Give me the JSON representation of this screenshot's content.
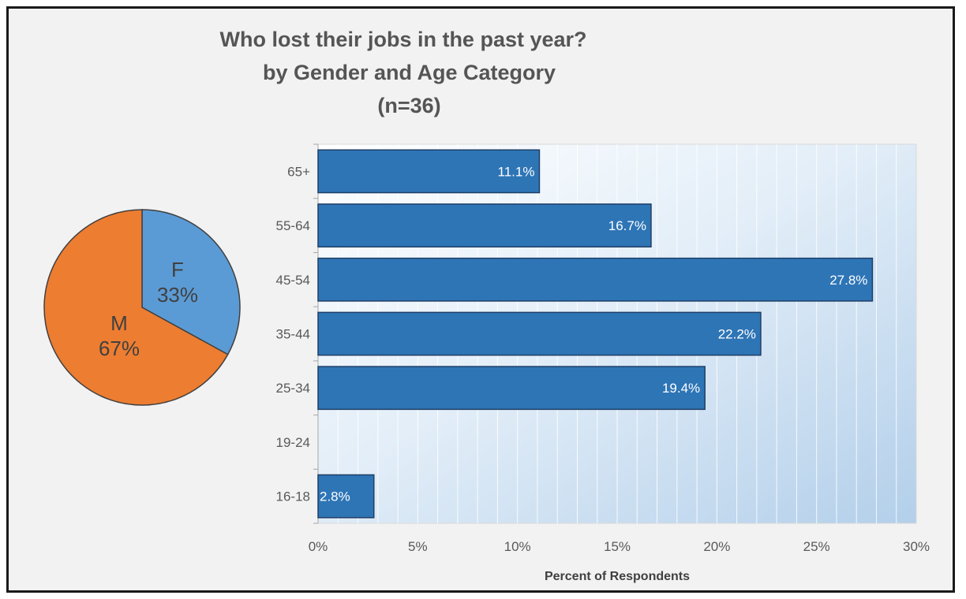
{
  "chart_data": [
    {
      "type": "pie",
      "title": "",
      "slices": [
        {
          "label": "F",
          "value": 33,
          "display": "33%",
          "color": "#5b9bd5"
        },
        {
          "label": "M",
          "value": 67,
          "display": "67%",
          "color": "#ed7d31"
        }
      ]
    },
    {
      "type": "bar",
      "orientation": "horizontal",
      "title_lines": [
        "Who lost their jobs in the past year?",
        "by Gender and Age Category",
        "(n=36)"
      ],
      "categories": [
        "65+",
        "55-64",
        "45-54",
        "35-44",
        "25-34",
        "19-24",
        "16-18"
      ],
      "values": [
        11.1,
        16.7,
        27.8,
        22.2,
        19.4,
        null,
        2.8
      ],
      "data_labels": [
        "11.1%",
        "16.7%",
        "27.8%",
        "22.2%",
        "19.4%",
        "",
        "2.8%"
      ],
      "xlabel": "Percent of Respondents",
      "ylabel": "",
      "xlim": [
        0,
        30
      ],
      "xticks": [
        0,
        5,
        10,
        15,
        20,
        25,
        30
      ],
      "xtick_labels": [
        "0%",
        "5%",
        "10%",
        "15%",
        "20%",
        "25%",
        "30%"
      ],
      "grid": true,
      "bar_color": "#2e75b6",
      "plot_background": "gradient white-to-light-blue"
    }
  ]
}
